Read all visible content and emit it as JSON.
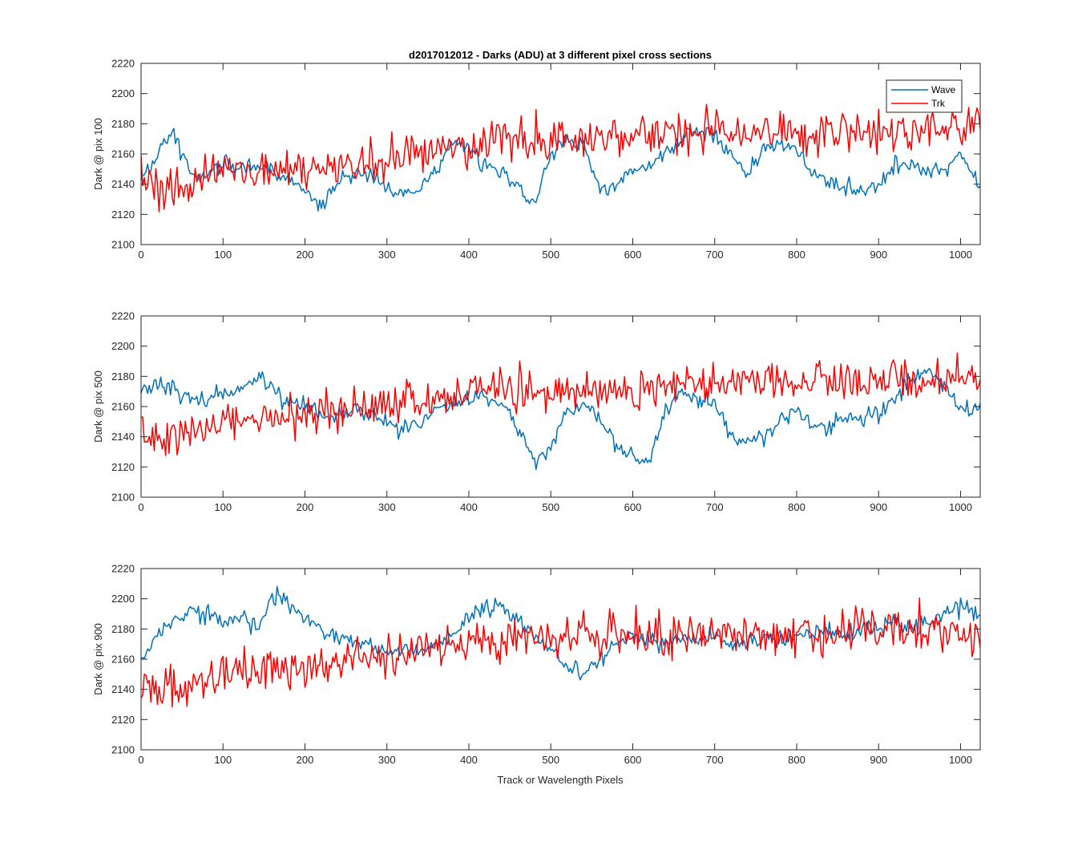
{
  "figure": {
    "title": "d2017012012 - Darks (ADU) at 3 different pixel cross sections",
    "xlabel": "Track or Wavelength Pixels",
    "legend": [
      {
        "label": "Wave",
        "color": "#0072bd"
      },
      {
        "label": "Trk",
        "color": "#ff0000"
      }
    ]
  },
  "chart_data": [
    {
      "type": "line",
      "ylabel": "Dark @ pix 100",
      "xlim": [
        0,
        1024
      ],
      "ylim": [
        2100,
        2220
      ],
      "xticks": [
        0,
        100,
        200,
        300,
        400,
        500,
        600,
        700,
        800,
        900,
        1000
      ],
      "yticks": [
        2100,
        2120,
        2140,
        2160,
        2180,
        2200,
        2220
      ],
      "legend_position": "top-right",
      "series": [
        {
          "name": "Wave",
          "color": "#0072bd",
          "x": [
            0,
            20,
            30,
            40,
            60,
            80,
            100,
            120,
            140,
            160,
            180,
            200,
            220,
            240,
            260,
            280,
            300,
            320,
            340,
            360,
            380,
            400,
            420,
            440,
            460,
            480,
            500,
            520,
            540,
            560,
            580,
            600,
            620,
            640,
            660,
            680,
            700,
            720,
            740,
            760,
            780,
            800,
            820,
            840,
            860,
            880,
            900,
            920,
            940,
            960,
            980,
            1000,
            1024
          ],
          "y": [
            2142,
            2160,
            2170,
            2172,
            2148,
            2145,
            2156,
            2150,
            2152,
            2148,
            2145,
            2135,
            2125,
            2140,
            2150,
            2145,
            2138,
            2135,
            2135,
            2150,
            2168,
            2165,
            2152,
            2148,
            2140,
            2125,
            2160,
            2168,
            2165,
            2135,
            2140,
            2150,
            2152,
            2160,
            2172,
            2176,
            2172,
            2160,
            2148,
            2162,
            2168,
            2162,
            2150,
            2140,
            2138,
            2136,
            2140,
            2152,
            2152,
            2148,
            2150,
            2160,
            2138
          ]
        },
        {
          "name": "Trk",
          "color": "#ff0000",
          "x": [
            0,
            20,
            40,
            60,
            80,
            100,
            150,
            200,
            250,
            300,
            350,
            400,
            450,
            500,
            550,
            600,
            650,
            700,
            750,
            800,
            850,
            900,
            950,
            1000,
            1024
          ],
          "y": [
            2148,
            2138,
            2135,
            2140,
            2148,
            2150,
            2148,
            2150,
            2152,
            2158,
            2162,
            2165,
            2168,
            2170,
            2170,
            2172,
            2174,
            2175,
            2176,
            2175,
            2176,
            2177,
            2178,
            2178,
            2180
          ]
        }
      ]
    },
    {
      "type": "line",
      "ylabel": "Dark @ pix 500",
      "xlim": [
        0,
        1024
      ],
      "ylim": [
        2100,
        2220
      ],
      "xticks": [
        0,
        100,
        200,
        300,
        400,
        500,
        600,
        700,
        800,
        900,
        1000
      ],
      "yticks": [
        2100,
        2120,
        2140,
        2160,
        2180,
        2200,
        2220
      ],
      "series": [
        {
          "name": "Wave",
          "color": "#0072bd",
          "x": [
            0,
            20,
            40,
            60,
            80,
            100,
            120,
            140,
            160,
            180,
            200,
            220,
            240,
            260,
            280,
            300,
            320,
            340,
            360,
            380,
            400,
            420,
            440,
            460,
            480,
            500,
            520,
            540,
            560,
            580,
            600,
            620,
            640,
            660,
            680,
            700,
            720,
            740,
            760,
            780,
            800,
            820,
            840,
            860,
            880,
            900,
            920,
            940,
            960,
            980,
            1000,
            1024
          ],
          "y": [
            2172,
            2175,
            2172,
            2165,
            2165,
            2168,
            2170,
            2180,
            2172,
            2162,
            2162,
            2155,
            2155,
            2160,
            2155,
            2150,
            2145,
            2150,
            2158,
            2162,
            2165,
            2168,
            2162,
            2145,
            2125,
            2132,
            2155,
            2160,
            2152,
            2135,
            2128,
            2122,
            2158,
            2170,
            2165,
            2162,
            2140,
            2135,
            2140,
            2150,
            2158,
            2148,
            2145,
            2155,
            2150,
            2155,
            2165,
            2178,
            2185,
            2172,
            2160,
            2158
          ]
        },
        {
          "name": "Trk",
          "color": "#ff0000",
          "x": [
            0,
            20,
            40,
            60,
            80,
            100,
            150,
            200,
            250,
            300,
            350,
            400,
            450,
            500,
            550,
            600,
            650,
            700,
            750,
            800,
            850,
            900,
            950,
            1000,
            1024
          ],
          "y": [
            2140,
            2138,
            2140,
            2145,
            2148,
            2150,
            2152,
            2155,
            2158,
            2162,
            2165,
            2170,
            2172,
            2172,
            2170,
            2172,
            2174,
            2175,
            2176,
            2176,
            2178,
            2180,
            2180,
            2178,
            2178
          ]
        }
      ]
    },
    {
      "type": "line",
      "ylabel": "Dark @ pix 900",
      "xlim": [
        0,
        1024
      ],
      "ylim": [
        2100,
        2220
      ],
      "xticks": [
        0,
        100,
        200,
        300,
        400,
        500,
        600,
        700,
        800,
        900,
        1000
      ],
      "yticks": [
        2100,
        2120,
        2140,
        2160,
        2180,
        2200,
        2220
      ],
      "series": [
        {
          "name": "Wave",
          "color": "#0072bd",
          "x": [
            0,
            20,
            40,
            60,
            80,
            100,
            120,
            140,
            160,
            170,
            180,
            200,
            220,
            240,
            260,
            280,
            300,
            320,
            340,
            360,
            380,
            400,
            420,
            440,
            460,
            480,
            500,
            520,
            540,
            560,
            580,
            600,
            620,
            640,
            660,
            680,
            700,
            720,
            740,
            760,
            780,
            800,
            820,
            840,
            860,
            880,
            900,
            920,
            940,
            960,
            980,
            1000,
            1024
          ],
          "y": [
            2160,
            2175,
            2185,
            2192,
            2190,
            2185,
            2188,
            2182,
            2198,
            2205,
            2195,
            2185,
            2180,
            2175,
            2172,
            2168,
            2165,
            2168,
            2165,
            2168,
            2178,
            2185,
            2195,
            2196,
            2185,
            2175,
            2165,
            2155,
            2152,
            2160,
            2170,
            2178,
            2172,
            2170,
            2175,
            2172,
            2175,
            2170,
            2170,
            2175,
            2172,
            2175,
            2178,
            2180,
            2175,
            2180,
            2182,
            2185,
            2180,
            2182,
            2188,
            2195,
            2190
          ]
        },
        {
          "name": "Trk",
          "color": "#ff0000",
          "x": [
            0,
            20,
            40,
            60,
            80,
            100,
            150,
            200,
            250,
            300,
            350,
            400,
            450,
            500,
            550,
            600,
            650,
            700,
            750,
            800,
            850,
            900,
            950,
            1000,
            1024
          ],
          "y": [
            2145,
            2140,
            2142,
            2145,
            2148,
            2150,
            2152,
            2155,
            2160,
            2162,
            2168,
            2172,
            2174,
            2174,
            2175,
            2176,
            2176,
            2176,
            2176,
            2178,
            2178,
            2180,
            2180,
            2178,
            2176
          ]
        }
      ]
    }
  ]
}
